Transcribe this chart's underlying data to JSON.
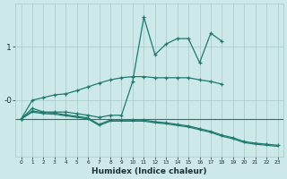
{
  "x": [
    0,
    1,
    2,
    3,
    4,
    5,
    6,
    7,
    8,
    9,
    10,
    11,
    12,
    13,
    14,
    15,
    16,
    17,
    18,
    19,
    20,
    21,
    22,
    23
  ],
  "line_spiky": [
    -0.35,
    -0.15,
    -0.22,
    -0.22,
    -0.22,
    -0.25,
    -0.28,
    -0.32,
    -0.28,
    -0.28,
    0.35,
    1.55,
    0.85,
    1.05,
    1.15,
    1.15,
    0.7,
    1.25,
    1.1,
    null,
    null,
    null,
    null,
    null
  ],
  "line_upper": [
    -0.35,
    0.0,
    0.05,
    0.1,
    0.12,
    0.18,
    0.25,
    0.32,
    0.38,
    0.42,
    0.44,
    0.44,
    0.42,
    0.42,
    0.42,
    0.42,
    0.38,
    0.35,
    0.3,
    null,
    null,
    null,
    null,
    null
  ],
  "line_lower1": [
    -0.35,
    -0.2,
    -0.23,
    -0.24,
    -0.27,
    -0.3,
    -0.33,
    -0.45,
    -0.37,
    -0.37,
    -0.37,
    -0.37,
    -0.4,
    -0.42,
    -0.45,
    -0.48,
    -0.53,
    -0.58,
    -0.65,
    -0.7,
    -0.77,
    -0.8,
    -0.82,
    -0.84
  ],
  "line_lower2": [
    -0.35,
    -0.22,
    -0.25,
    -0.26,
    -0.29,
    -0.32,
    -0.35,
    -0.47,
    -0.39,
    -0.39,
    -0.39,
    -0.39,
    -0.42,
    -0.44,
    -0.47,
    -0.5,
    -0.55,
    -0.6,
    -0.67,
    -0.72,
    -0.79,
    -0.82,
    -0.84,
    -0.86
  ],
  "line_horiz": -0.35,
  "color": "#1e7a6e",
  "bg_color": "#cce8e8",
  "grid_color_major": "#a8c8c8",
  "grid_color_minor": "#bcd8d8",
  "xlabel": "Humidex (Indice chaleur)",
  "ylim": [
    -1.05,
    1.8
  ],
  "xlim": [
    -0.5,
    23.5
  ],
  "ytick_positions": [
    0.0,
    1.0
  ],
  "ytick_labels": [
    "-0",
    "1"
  ],
  "xtick_labels": [
    "0",
    "1",
    "2",
    "3",
    "4",
    "5",
    "6",
    "7",
    "8",
    "9",
    "10",
    "11",
    "12",
    "13",
    "14",
    "15",
    "16",
    "17",
    "18",
    "19",
    "20",
    "21",
    "22",
    "23"
  ]
}
